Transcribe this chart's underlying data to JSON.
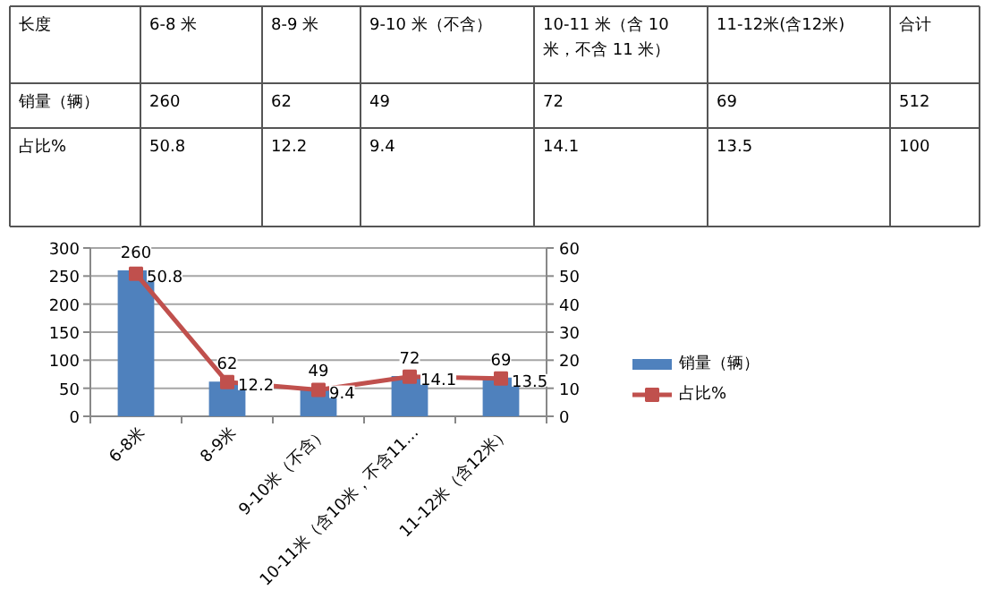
{
  "chart_data": [
    {
      "type": "other",
      "annotations": [
        "长度",
        "6-8 米",
        "8-9 米",
        "9-10 米（不含）",
        "10-11 米（含 10 米，不含 11 米）",
        "11-12米(含12米)",
        "合计",
        "销量（辆）",
        "260",
        "62",
        "49",
        "72",
        "69",
        "512",
        "占比%",
        "50.8",
        "12.2",
        "9.4",
        "14.1",
        "13.5",
        "100"
      ]
    },
    {
      "type": "bar",
      "categories": [
        "6-8米",
        "8-9米",
        "9-10米（不含）",
        "10-11米（含10米，不含11…",
        "11-12米（含12米）"
      ],
      "series": [
        {
          "name": "销量（辆）",
          "type": "bar",
          "color": "#4f81bd",
          "values": [
            260,
            62,
            49,
            72,
            69
          ]
        },
        {
          "name": "占比%",
          "type": "line",
          "axis": "y2",
          "color": "#c0504d",
          "marker": "square",
          "values": [
            50.8,
            12.2,
            9.4,
            14.1,
            13.5
          ]
        }
      ],
      "ylim": [
        0,
        300
      ],
      "yticks": [
        0,
        50,
        100,
        150,
        200,
        250,
        300
      ],
      "y2lim": [
        0,
        60
      ],
      "y2ticks": [
        0,
        10,
        20,
        30,
        40,
        50,
        60
      ],
      "grid": "y",
      "legend": "right",
      "data_labels": true
    }
  ]
}
